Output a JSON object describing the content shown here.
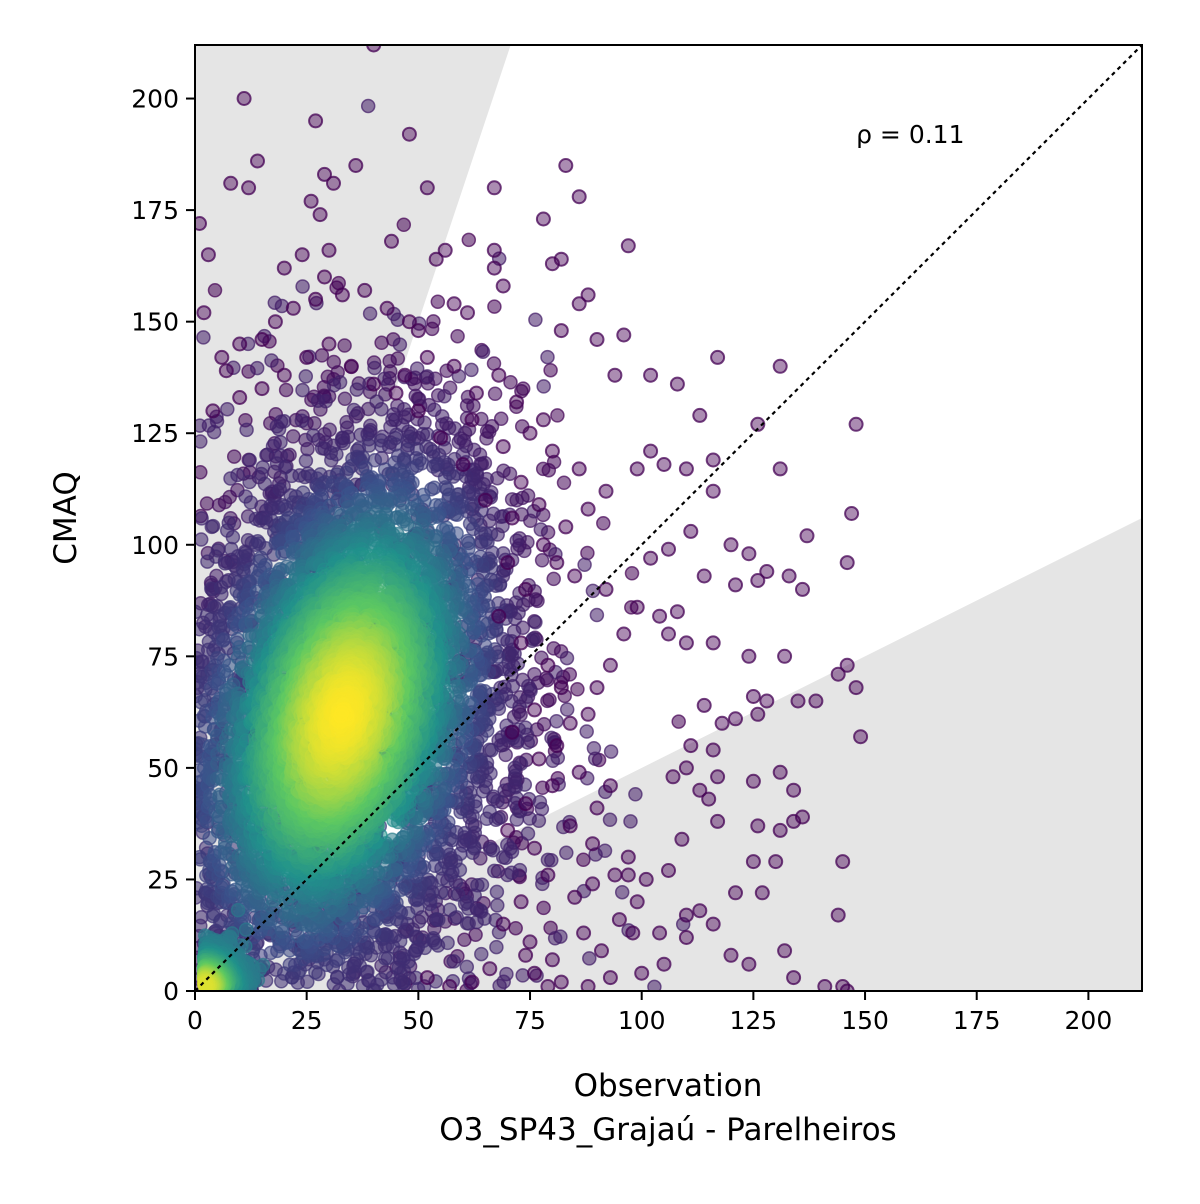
{
  "chart_data": {
    "type": "scatter",
    "title": "",
    "xlabel": "Observation",
    "xlabel_sub": "O3_SP43_Grajaú - Parelheiros",
    "ylabel": "CMAQ",
    "xlim": [
      0,
      212
    ],
    "ylim": [
      0,
      212
    ],
    "xticks": [
      0,
      25,
      50,
      75,
      100,
      125,
      150,
      175,
      200
    ],
    "yticks": [
      0,
      25,
      50,
      75,
      100,
      125,
      150,
      175,
      200
    ],
    "annotation": "ρ = 0.11",
    "annotation_pos": [
      148,
      190
    ],
    "reference_line": {
      "slope": 1,
      "style": "dotted",
      "color": "#000000"
    },
    "shaded_region_slopes": {
      "upper": 3,
      "lower": 0.5,
      "color": "#e5e5e5"
    },
    "density_colormap": [
      "#440154",
      "#3b528b",
      "#21918c",
      "#5ec962",
      "#fde725"
    ],
    "density_clusters": [
      {
        "x": 33,
        "y": 62,
        "level": 1.0
      },
      {
        "x": 4,
        "y": 3,
        "level": 0.95
      }
    ],
    "sparse_points": [
      [
        1,
        172
      ],
      [
        3,
        165
      ],
      [
        2,
        152
      ],
      [
        6,
        142
      ],
      [
        11,
        200
      ],
      [
        8,
        181
      ],
      [
        12,
        180
      ],
      [
        14,
        186
      ],
      [
        27,
        195
      ],
      [
        26,
        177
      ],
      [
        29,
        183
      ],
      [
        31,
        181
      ],
      [
        28,
        174
      ],
      [
        30,
        166
      ],
      [
        29,
        160
      ],
      [
        36,
        185
      ],
      [
        44,
        168
      ],
      [
        48,
        192
      ],
      [
        52,
        180
      ],
      [
        54,
        164
      ],
      [
        56,
        166
      ],
      [
        40,
        212
      ],
      [
        67,
        180
      ],
      [
        67,
        166
      ],
      [
        67,
        162
      ],
      [
        69,
        158
      ],
      [
        78,
        173
      ],
      [
        80,
        163
      ],
      [
        82,
        164
      ],
      [
        83,
        185
      ],
      [
        86,
        178
      ],
      [
        82,
        148
      ],
      [
        86,
        154
      ],
      [
        88,
        156
      ],
      [
        97,
        167
      ],
      [
        90,
        146
      ],
      [
        94,
        138
      ],
      [
        96,
        147
      ],
      [
        102,
        138
      ],
      [
        108,
        136
      ],
      [
        117,
        142
      ],
      [
        131,
        140
      ],
      [
        113,
        129
      ],
      [
        126,
        127
      ],
      [
        148,
        127
      ],
      [
        116,
        112
      ],
      [
        102,
        121
      ],
      [
        99,
        117
      ],
      [
        105,
        118
      ],
      [
        110,
        117
      ],
      [
        116,
        119
      ],
      [
        131,
        117
      ],
      [
        147,
        107
      ],
      [
        146,
        96
      ],
      [
        137,
        102
      ],
      [
        124,
        98
      ],
      [
        120,
        100
      ],
      [
        128,
        94
      ],
      [
        133,
        93
      ],
      [
        136,
        90
      ],
      [
        126,
        92
      ],
      [
        121,
        91
      ],
      [
        114,
        93
      ],
      [
        111,
        103
      ],
      [
        106,
        99
      ],
      [
        102,
        97
      ],
      [
        108,
        85
      ],
      [
        104,
        84
      ],
      [
        106,
        80
      ],
      [
        110,
        78
      ],
      [
        116,
        78
      ],
      [
        124,
        75
      ],
      [
        132,
        75
      ],
      [
        146,
        73
      ],
      [
        148,
        68
      ],
      [
        144,
        71
      ],
      [
        135,
        65
      ],
      [
        139,
        65
      ],
      [
        128,
        65
      ],
      [
        125,
        66
      ],
      [
        121,
        61
      ],
      [
        126,
        62
      ],
      [
        118,
        60
      ],
      [
        114,
        64
      ],
      [
        116,
        54
      ],
      [
        111,
        55
      ],
      [
        110,
        50
      ],
      [
        107,
        48
      ],
      [
        117,
        48
      ],
      [
        125,
        47
      ],
      [
        131,
        49
      ],
      [
        134,
        45
      ],
      [
        136,
        39
      ],
      [
        134,
        38
      ],
      [
        131,
        36
      ],
      [
        126,
        37
      ],
      [
        130,
        29
      ],
      [
        125,
        29
      ],
      [
        127,
        22
      ],
      [
        121,
        22
      ],
      [
        117,
        38
      ],
      [
        115,
        43
      ],
      [
        113,
        45
      ],
      [
        109,
        34
      ],
      [
        106,
        27
      ],
      [
        101,
        25
      ],
      [
        99,
        20
      ],
      [
        97,
        26
      ],
      [
        110,
        17
      ],
      [
        113,
        18
      ],
      [
        116,
        15
      ],
      [
        104,
        13
      ],
      [
        98,
        13
      ],
      [
        95,
        16
      ],
      [
        120,
        8
      ],
      [
        124,
        6
      ],
      [
        134,
        3
      ],
      [
        141,
        1
      ],
      [
        145,
        1
      ],
      [
        146,
        0
      ],
      [
        132,
        9
      ],
      [
        144,
        17
      ],
      [
        145,
        29
      ],
      [
        149,
        57
      ],
      [
        110,
        12
      ],
      [
        87,
        13
      ],
      [
        91,
        9
      ],
      [
        105,
        6
      ],
      [
        100,
        4
      ],
      [
        93,
        3
      ],
      [
        88,
        1
      ],
      [
        82,
        2
      ],
      [
        79,
        1
      ],
      [
        76,
        4
      ],
      [
        74,
        8
      ],
      [
        85,
        21
      ],
      [
        89,
        24
      ],
      [
        94,
        26
      ],
      [
        97,
        30
      ],
      [
        89,
        33
      ],
      [
        84,
        37
      ],
      [
        90,
        41
      ],
      [
        93,
        46
      ],
      [
        86,
        49
      ],
      [
        81,
        55
      ],
      [
        84,
        60
      ],
      [
        88,
        62
      ],
      [
        90,
        68
      ],
      [
        93,
        73
      ],
      [
        96,
        80
      ],
      [
        99,
        86
      ],
      [
        92,
        90
      ],
      [
        85,
        93
      ],
      [
        81,
        96
      ],
      [
        78,
        100
      ],
      [
        83,
        104
      ],
      [
        88,
        108
      ],
      [
        92,
        112
      ],
      [
        86,
        117
      ],
      [
        80,
        121
      ],
      [
        75,
        125
      ],
      [
        78,
        128
      ],
      [
        72,
        132
      ],
      [
        68,
        138
      ],
      [
        63,
        134
      ],
      [
        58,
        140
      ],
      [
        52,
        142
      ],
      [
        48,
        150
      ],
      [
        43,
        153
      ],
      [
        38,
        157
      ],
      [
        33,
        156
      ],
      [
        27,
        155
      ],
      [
        22,
        153
      ],
      [
        18,
        150
      ],
      [
        15,
        146
      ],
      [
        10,
        145
      ],
      [
        7,
        139
      ],
      [
        4,
        130
      ],
      [
        20,
        162
      ],
      [
        24,
        165
      ],
      [
        61,
        152
      ],
      [
        58,
        154
      ],
      [
        50,
        148
      ],
      [
        47,
        138
      ],
      [
        62,
        128
      ],
      [
        69,
        122
      ],
      [
        73,
        114
      ],
      [
        77,
        109
      ],
      [
        71,
        106
      ],
      [
        65,
        110
      ],
      [
        60,
        118
      ],
      [
        55,
        124
      ],
      [
        50,
        130
      ],
      [
        45,
        134
      ],
      [
        40,
        136
      ],
      [
        35,
        140
      ],
      [
        30,
        145
      ],
      [
        25,
        142
      ],
      [
        20,
        138
      ],
      [
        15,
        135
      ],
      [
        10,
        133
      ],
      [
        70,
        96
      ],
      [
        74,
        90
      ],
      [
        68,
        84
      ],
      [
        73,
        78
      ],
      [
        79,
        73
      ],
      [
        82,
        68
      ],
      [
        76,
        63
      ],
      [
        71,
        58
      ],
      [
        77,
        52
      ],
      [
        80,
        46
      ],
      [
        74,
        42
      ],
      [
        70,
        36
      ],
      [
        76,
        32
      ],
      [
        79,
        26
      ],
      [
        73,
        20
      ],
      [
        69,
        15
      ],
      [
        75,
        11
      ],
      [
        80,
        7
      ],
      [
        66,
        5
      ],
      [
        62,
        2
      ],
      [
        57,
        1
      ],
      [
        52,
        3
      ]
    ]
  }
}
